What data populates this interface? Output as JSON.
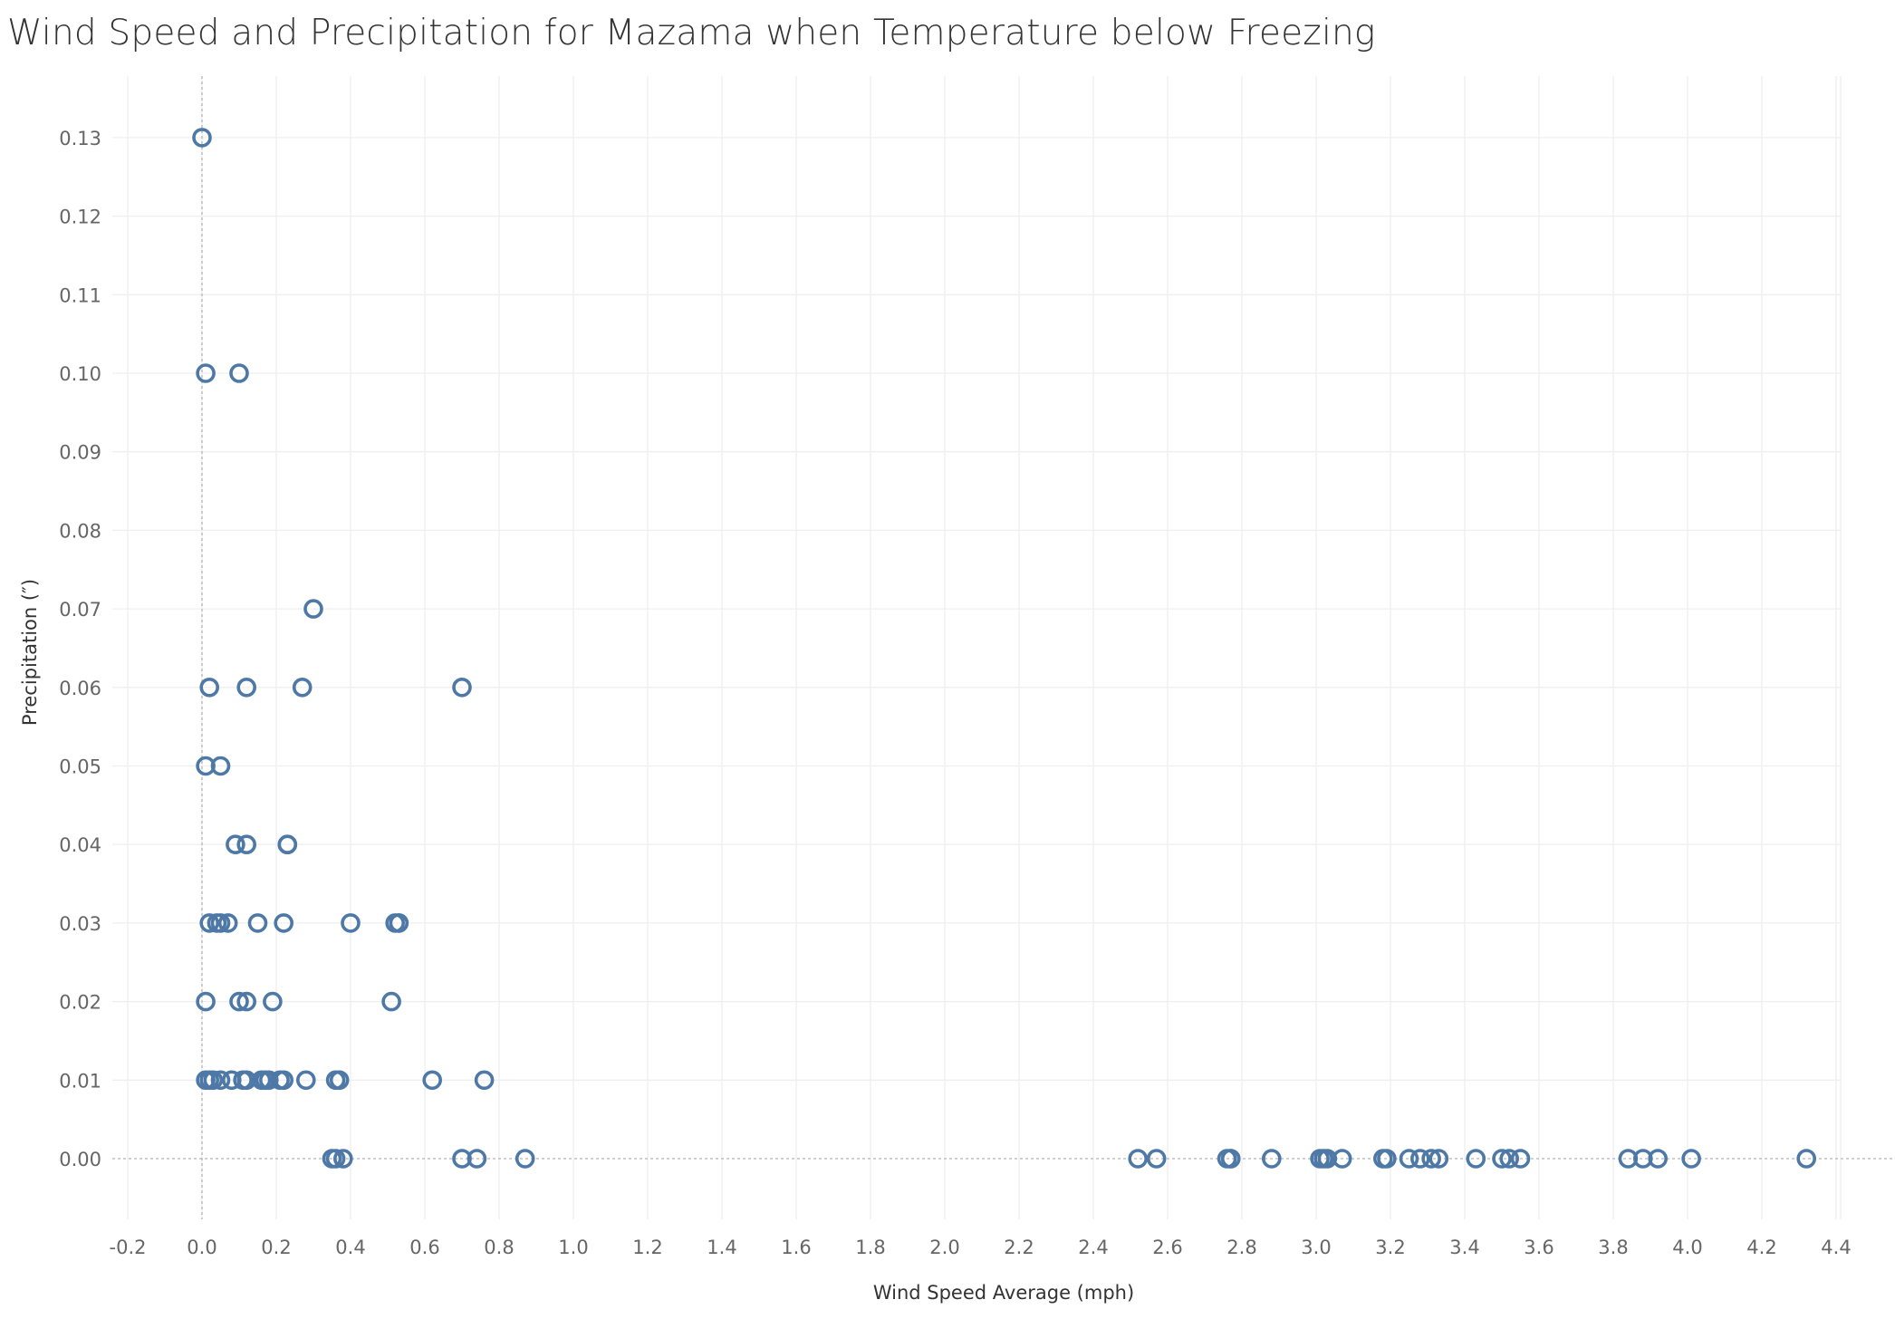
{
  "chart_data": {
    "type": "scatter",
    "title": "Wind Speed and Precipitation for Mazama when Temperature below Freezing",
    "xlabel": "Wind Speed Average (mph)",
    "ylabel": "Precipitation (″)",
    "xlim": [
      -0.2,
      4.4
    ],
    "ylim": [
      0.0,
      0.13
    ],
    "x_ticks": [
      "-0.2",
      "0.0",
      "0.2",
      "0.4",
      "0.6",
      "0.8",
      "1.0",
      "1.2",
      "1.4",
      "1.6",
      "1.8",
      "2.0",
      "2.2",
      "2.4",
      "2.6",
      "2.8",
      "3.0",
      "3.2",
      "3.4",
      "3.6",
      "3.8",
      "4.0",
      "4.2",
      "4.4"
    ],
    "y_ticks": [
      "0.00",
      "0.01",
      "0.02",
      "0.03",
      "0.04",
      "0.05",
      "0.06",
      "0.07",
      "0.08",
      "0.09",
      "0.10",
      "0.11",
      "0.12",
      "0.13"
    ],
    "grid": true,
    "marker": "hollow-circle",
    "color": "#4e79a7",
    "points": [
      [
        0.0,
        0.13
      ],
      [
        0.01,
        0.1
      ],
      [
        0.1,
        0.1
      ],
      [
        0.3,
        0.07
      ],
      [
        0.02,
        0.06
      ],
      [
        0.12,
        0.06
      ],
      [
        0.27,
        0.06
      ],
      [
        0.7,
        0.06
      ],
      [
        0.01,
        0.05
      ],
      [
        0.05,
        0.05
      ],
      [
        0.09,
        0.04
      ],
      [
        0.12,
        0.04
      ],
      [
        0.23,
        0.04
      ],
      [
        0.23,
        0.04
      ],
      [
        0.02,
        0.03
      ],
      [
        0.04,
        0.03
      ],
      [
        0.05,
        0.03
      ],
      [
        0.07,
        0.03
      ],
      [
        0.15,
        0.03
      ],
      [
        0.22,
        0.03
      ],
      [
        0.4,
        0.03
      ],
      [
        0.52,
        0.03
      ],
      [
        0.53,
        0.03
      ],
      [
        0.53,
        0.03
      ],
      [
        0.01,
        0.02
      ],
      [
        0.1,
        0.02
      ],
      [
        0.12,
        0.02
      ],
      [
        0.19,
        0.02
      ],
      [
        0.51,
        0.02
      ],
      [
        0.01,
        0.01
      ],
      [
        0.02,
        0.01
      ],
      [
        0.03,
        0.01
      ],
      [
        0.05,
        0.01
      ],
      [
        0.08,
        0.01
      ],
      [
        0.11,
        0.01
      ],
      [
        0.12,
        0.01
      ],
      [
        0.16,
        0.01
      ],
      [
        0.17,
        0.01
      ],
      [
        0.18,
        0.01
      ],
      [
        0.21,
        0.01
      ],
      [
        0.22,
        0.01
      ],
      [
        0.28,
        0.01
      ],
      [
        0.36,
        0.01
      ],
      [
        0.37,
        0.01
      ],
      [
        0.62,
        0.01
      ],
      [
        0.76,
        0.01
      ],
      [
        0.35,
        0.0
      ],
      [
        0.36,
        0.0
      ],
      [
        0.38,
        0.0
      ],
      [
        0.7,
        0.0
      ],
      [
        0.74,
        0.0
      ],
      [
        0.87,
        0.0
      ],
      [
        2.52,
        0.0
      ],
      [
        2.57,
        0.0
      ],
      [
        2.76,
        0.0
      ],
      [
        2.77,
        0.0
      ],
      [
        2.77,
        0.0
      ],
      [
        2.88,
        0.0
      ],
      [
        3.01,
        0.0
      ],
      [
        3.02,
        0.0
      ],
      [
        3.03,
        0.0
      ],
      [
        3.07,
        0.0
      ],
      [
        3.18,
        0.0
      ],
      [
        3.19,
        0.0
      ],
      [
        3.25,
        0.0
      ],
      [
        3.28,
        0.0
      ],
      [
        3.31,
        0.0
      ],
      [
        3.33,
        0.0
      ],
      [
        3.43,
        0.0
      ],
      [
        3.5,
        0.0
      ],
      [
        3.52,
        0.0
      ],
      [
        3.55,
        0.0
      ],
      [
        3.84,
        0.0
      ],
      [
        3.88,
        0.0
      ],
      [
        3.92,
        0.0
      ],
      [
        4.01,
        0.0
      ],
      [
        4.32,
        0.0
      ]
    ]
  }
}
